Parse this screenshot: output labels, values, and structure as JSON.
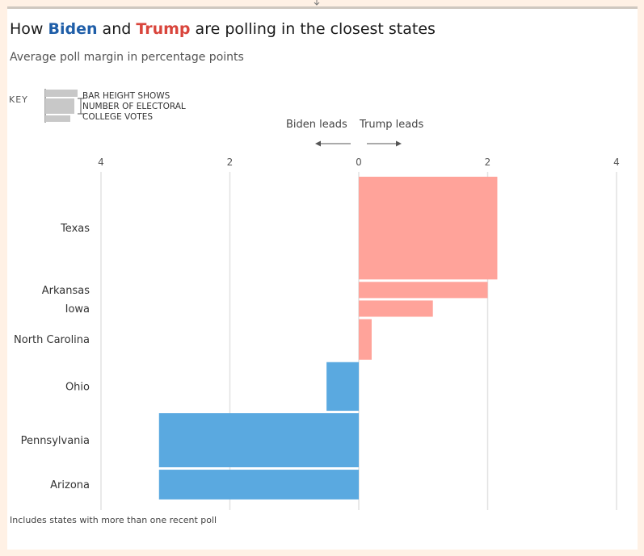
{
  "title": {
    "prefix": "How ",
    "biden": "Biden",
    "middle": " and ",
    "trump": "Trump",
    "suffix": " are polling in the closest states"
  },
  "subtitle": "Average poll margin in percentage points",
  "key": {
    "label": "KEY",
    "lines": [
      "BAR HEIGHT SHOWS",
      "NUMBER OF ELECTORAL",
      "COLLEGE VOTES"
    ]
  },
  "direction_labels": {
    "biden": "Biden leads",
    "trump": "Trump leads"
  },
  "footnote": "Includes states with more than one recent poll",
  "colors": {
    "trump": "#ffa39a",
    "biden": "#5aa9e0",
    "background": "#fff1e5",
    "biden_title": "#1f5ea8",
    "trump_title": "#d9453c"
  },
  "chart_data": {
    "type": "bar",
    "orientation": "horizontal",
    "xlim": [
      -4,
      4
    ],
    "x_ticks": [
      {
        "value": -4,
        "label": "4"
      },
      {
        "value": -2,
        "label": "2"
      },
      {
        "value": 0,
        "label": "0"
      },
      {
        "value": 2,
        "label": "2"
      },
      {
        "value": 4,
        "label": "4"
      }
    ],
    "grid": true,
    "bar_height_encodes": "electoral college votes",
    "bars": [
      {
        "state": "Texas",
        "margin": 2.15,
        "leader": "trump",
        "electoral_votes": 38
      },
      {
        "state": "Arkansas",
        "margin": 2.0,
        "leader": "trump",
        "electoral_votes": 6
      },
      {
        "state": "Iowa",
        "margin": 1.15,
        "leader": "trump",
        "electoral_votes": 6
      },
      {
        "state": "North Carolina",
        "margin": 0.2,
        "leader": "trump",
        "electoral_votes": 15
      },
      {
        "state": "Ohio",
        "margin": -0.5,
        "leader": "biden",
        "electoral_votes": 18
      },
      {
        "state": "Pennsylvania",
        "margin": -3.1,
        "leader": "biden",
        "electoral_votes": 20
      },
      {
        "state": "Arizona",
        "margin": -3.1,
        "leader": "biden",
        "electoral_votes": 11
      }
    ]
  }
}
